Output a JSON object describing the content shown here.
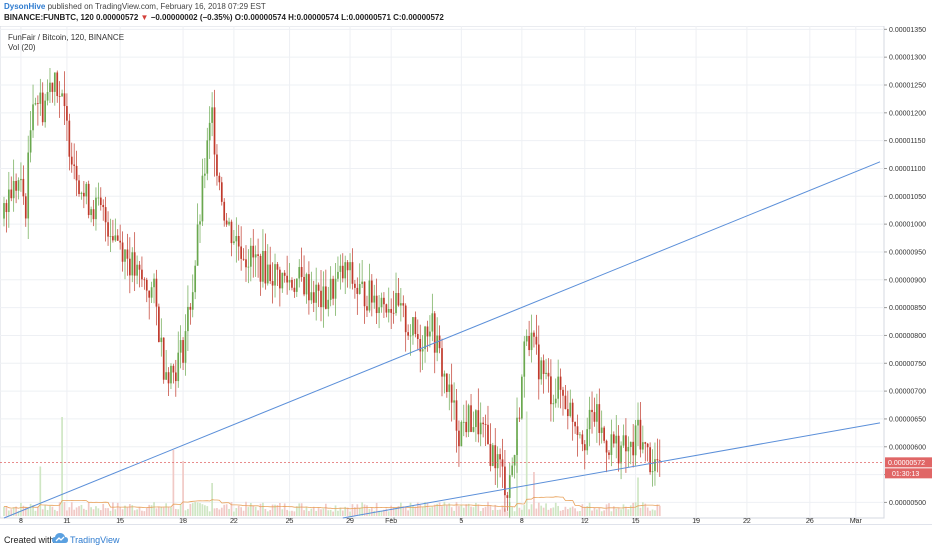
{
  "header": {
    "author": "DysonHive",
    "published": "published on TradingView.com, February 16, 2018 07:29 EST",
    "symbol": "BINANCE:FUNBTC, 120",
    "price": "0.00000572",
    "change_arrow": "▼",
    "change": "−0.00000002 (−0.35%)",
    "ohlc": "O:0.00000574 H:0.00000574 L:0.00000571 C:0.00000572"
  },
  "legend": {
    "pair": "FunFair / Bitcoin, 120, BINANCE",
    "volume": "Vol (20)"
  },
  "footer": {
    "created_with": "Created with",
    "brand": "TradingView",
    "icon": "tradingview-cloud-icon"
  },
  "colors": {
    "up": "#6aa84f",
    "down": "#c0392b",
    "trendline": "#5b8fd9",
    "price_line": "#e06666",
    "price_badge": "#e06666",
    "timer_badge": "#e06666",
    "volume_ma": "#e8a15a",
    "grid": "#eef0f4"
  },
  "chart_data": {
    "type": "candlestick",
    "price_axis": {
      "ylim": [
        4.72e-06,
        1.356e-05
      ],
      "ticks": [
        "0.00001350",
        "0.00001300",
        "0.00001250",
        "0.00001200",
        "0.00001150",
        "0.00001100",
        "0.00001050",
        "0.00001000",
        "0.00000950",
        "0.00000900",
        "0.00000850",
        "0.00000800",
        "0.00000750",
        "0.00000700",
        "0.00000650",
        "0.00000600",
        "0.00000550",
        "0.00000500"
      ],
      "last_price_label": "0.00000572",
      "timer_label": "01:30:13"
    },
    "time_axis": {
      "ticks": [
        "8",
        "11",
        "15",
        "18",
        "22",
        "25",
        "29",
        "Feb",
        "5",
        "8",
        "12",
        "15",
        "19",
        "22",
        "26",
        "Mar"
      ]
    },
    "anchors": [
      {
        "t": 0,
        "c": 1.01e-05
      },
      {
        "t": 2,
        "c": 1.055e-05
      },
      {
        "t": 6,
        "c": 1.075e-05
      },
      {
        "t": 9,
        "c": 1.035e-05
      },
      {
        "t": 12,
        "c": 1.24e-05
      },
      {
        "t": 16,
        "c": 1.21e-05
      },
      {
        "t": 21,
        "c": 1.275e-05
      },
      {
        "t": 27,
        "c": 1.15e-05
      },
      {
        "t": 33,
        "c": 1.05e-05
      },
      {
        "t": 40,
        "c": 1.02e-05
      },
      {
        "t": 48,
        "c": 9.7e-06
      },
      {
        "t": 55,
        "c": 9.05e-06
      },
      {
        "t": 62,
        "c": 8.75e-06
      },
      {
        "t": 66,
        "c": 7.5e-06
      },
      {
        "t": 70,
        "c": 7.35e-06
      },
      {
        "t": 74,
        "c": 7.8e-06
      },
      {
        "t": 78,
        "c": 8.9e-06
      },
      {
        "t": 83,
        "c": 1.1e-05
      },
      {
        "t": 86,
        "c": 1.195e-05
      },
      {
        "t": 88,
        "c": 1.11e-05
      },
      {
        "t": 92,
        "c": 1e-05
      },
      {
        "t": 100,
        "c": 9.45e-06
      },
      {
        "t": 108,
        "c": 9.2e-06
      },
      {
        "t": 116,
        "c": 9e-06
      },
      {
        "t": 124,
        "c": 8.95e-06
      },
      {
        "t": 132,
        "c": 8.6e-06
      },
      {
        "t": 138,
        "c": 9e-06
      },
      {
        "t": 142,
        "c": 9.15e-06
      },
      {
        "t": 146,
        "c": 8.8e-06
      },
      {
        "t": 152,
        "c": 8.7e-06
      },
      {
        "t": 160,
        "c": 8.6e-06
      },
      {
        "t": 168,
        "c": 8.1e-06
      },
      {
        "t": 172,
        "c": 7.9e-06
      },
      {
        "t": 176,
        "c": 8.3e-06
      },
      {
        "t": 180,
        "c": 7.6e-06
      },
      {
        "t": 184,
        "c": 6.9e-06
      },
      {
        "t": 188,
        "c": 6.3e-06
      },
      {
        "t": 192,
        "c": 6.5e-06
      },
      {
        "t": 196,
        "c": 6.4e-06
      },
      {
        "t": 200,
        "c": 6e-06
      },
      {
        "t": 204,
        "c": 5.75e-06
      },
      {
        "t": 208,
        "c": 5.25e-06
      },
      {
        "t": 211,
        "c": 5.9e-06
      },
      {
        "t": 214,
        "c": 7.2e-06
      },
      {
        "t": 216,
        "c": 8.2e-06
      },
      {
        "t": 219,
        "c": 7.7e-06
      },
      {
        "t": 222,
        "c": 7.4e-06
      },
      {
        "t": 226,
        "c": 7e-06
      },
      {
        "t": 230,
        "c": 7e-06
      },
      {
        "t": 236,
        "c": 6.5e-06
      },
      {
        "t": 240,
        "c": 6.2e-06
      },
      {
        "t": 244,
        "c": 6.6e-06
      },
      {
        "t": 248,
        "c": 6.1e-06
      },
      {
        "t": 252,
        "c": 6.05e-06
      },
      {
        "t": 256,
        "c": 5.95e-06
      },
      {
        "t": 260,
        "c": 5.9e-06
      },
      {
        "t": 262,
        "c": 6.4e-06
      },
      {
        "t": 264,
        "c": 6e-06
      },
      {
        "t": 266,
        "c": 5.85e-06
      },
      {
        "t": 268,
        "c": 5.7e-06
      },
      {
        "t": 271,
        "c": 5.72e-06
      }
    ],
    "candle_count": 272,
    "volume_spikes": [
      {
        "t": 15,
        "v": 0.45
      },
      {
        "t": 24,
        "v": 0.9
      },
      {
        "t": 70,
        "v": 0.6
      },
      {
        "t": 74,
        "v": 0.5
      },
      {
        "t": 86,
        "v": 0.3
      },
      {
        "t": 212,
        "v": 0.7
      },
      {
        "t": 216,
        "v": 0.95
      },
      {
        "t": 219,
        "v": 0.4
      },
      {
        "t": 262,
        "v": 0.35
      }
    ],
    "trendlines": [
      {
        "from": {
          "t": 0,
          "price": 4.72e-06
        },
        "to": {
          "t": 362,
          "price": 1.112e-05
        }
      },
      {
        "from": {
          "t": 140,
          "price": 4.72e-06
        },
        "to": {
          "t": 362,
          "price": 6.43e-06
        }
      }
    ],
    "current_price": 5.72e-06,
    "grid": true,
    "volume_indicator": "Vol (20)"
  }
}
